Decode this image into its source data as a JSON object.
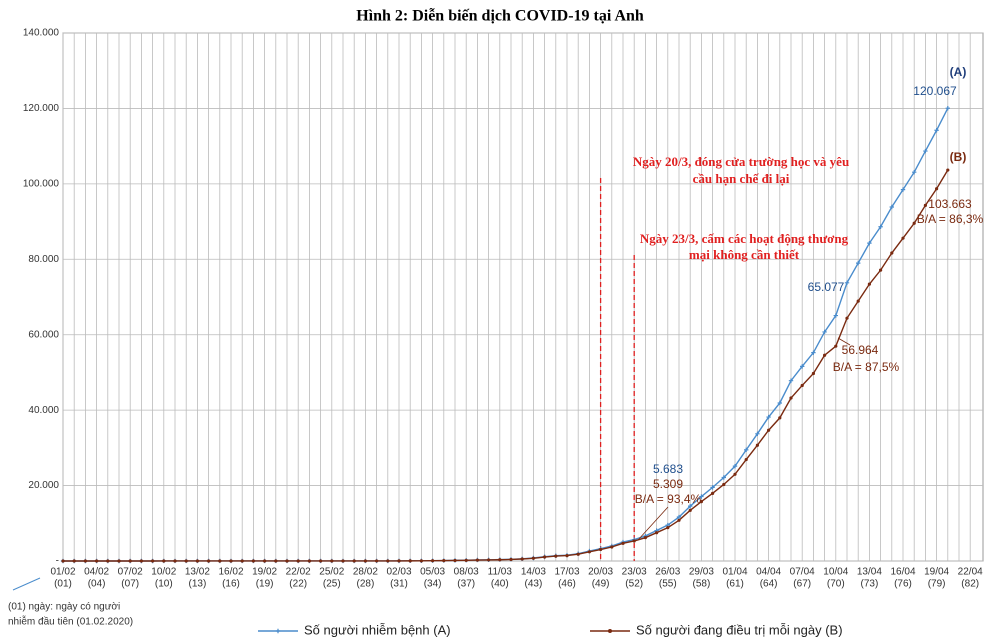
{
  "chart_data": {
    "type": "line",
    "title": "Hình 2: Diễn biến dịch COVID-19 tại Anh",
    "categories": [
      "01/02",
      null,
      null,
      "04/02",
      null,
      null,
      "07/02",
      null,
      null,
      "10/02",
      null,
      null,
      "13/02",
      null,
      null,
      "16/02",
      null,
      null,
      "19/02",
      null,
      null,
      "22/02",
      null,
      null,
      "25/02",
      null,
      null,
      "28/02",
      null,
      null,
      "02/03",
      null,
      null,
      "05/03",
      null,
      null,
      "08/03",
      null,
      null,
      "11/03",
      null,
      null,
      "14/03",
      null,
      null,
      "17/03",
      null,
      null,
      "20/03",
      null,
      null,
      "23/03",
      null,
      null,
      "26/03",
      null,
      null,
      "29/03",
      null,
      null,
      "01/04",
      null,
      null,
      "04/04",
      null,
      null,
      "07/04",
      null,
      null,
      "10/04",
      null,
      null,
      "13/04",
      null,
      null,
      "16/04",
      null,
      null,
      "19/04",
      null,
      null,
      "22/04"
    ],
    "category_sublabels": [
      "(01)",
      null,
      null,
      "(04)",
      null,
      null,
      "(07)",
      null,
      null,
      "(10)",
      null,
      null,
      "(13)",
      null,
      null,
      "(16)",
      null,
      null,
      "(19)",
      null,
      null,
      "(22)",
      null,
      null,
      "(25)",
      null,
      null,
      "(28)",
      null,
      null,
      "(31)",
      null,
      null,
      "(34)",
      null,
      null,
      "(37)",
      null,
      null,
      "(40)",
      null,
      null,
      "(43)",
      null,
      null,
      "(46)",
      null,
      null,
      "(49)",
      null,
      null,
      "(52)",
      null,
      null,
      "(55)",
      null,
      null,
      "(58)",
      null,
      null,
      "(61)",
      null,
      null,
      "(64)",
      null,
      null,
      "(67)",
      null,
      null,
      "(70)",
      null,
      null,
      "(73)",
      null,
      null,
      "(76)",
      null,
      null,
      "(79)",
      null,
      null,
      "(82)"
    ],
    "series": [
      {
        "name": "Số người nhiễm bệnh (A)",
        "color": "#4a8ccc",
        "values": [
          2,
          2,
          2,
          2,
          2,
          2,
          2,
          2,
          2,
          8,
          8,
          8,
          9,
          9,
          9,
          9,
          9,
          9,
          9,
          9,
          9,
          9,
          9,
          13,
          13,
          13,
          13,
          15,
          20,
          23,
          36,
          40,
          51,
          85,
          115,
          163,
          206,
          273,
          321,
          373,
          456,
          590,
          798,
          1140,
          1391,
          1543,
          1950,
          2626,
          3269,
          3983,
          5018,
          5683,
          6650,
          8077,
          9529,
          11658,
          14543,
          17089,
          19522,
          22141,
          25150,
          29474,
          33718,
          38168,
          41903,
          47806,
          51608,
          55242,
          60733,
          65077,
          73758,
          78991,
          84279,
          88621,
          93873,
          98476,
          103093,
          108692,
          114217,
          120067,
          null,
          null
        ]
      },
      {
        "name": "Số người đang điều trị mỗi ngày (B)",
        "color": "#7a2a10",
        "values": [
          2,
          2,
          2,
          2,
          2,
          2,
          2,
          2,
          2,
          8,
          8,
          8,
          9,
          9,
          9,
          9,
          9,
          9,
          9,
          9,
          9,
          9,
          9,
          13,
          13,
          13,
          13,
          15,
          20,
          21,
          28,
          32,
          43,
          77,
          97,
          144,
          180,
          243,
          287,
          329,
          407,
          531,
          725,
          1055,
          1296,
          1431,
          1806,
          2442,
          3046,
          3709,
          4689,
          5309,
          6189,
          7505,
          8843,
          10794,
          13439,
          15750,
          17940,
          20291,
          22987,
          26899,
          30699,
          34671,
          37942,
          43216,
          46546,
          49718,
          54562,
          56964,
          64385,
          68910,
          73410,
          77120,
          81658,
          85600,
          89555,
          94300,
          98700,
          103663,
          null,
          null
        ]
      }
    ],
    "ylim": [
      0,
      140000
    ],
    "yticks": [
      {
        "value": 0,
        "label": "-"
      },
      {
        "value": 20000,
        "label": "20.000"
      },
      {
        "value": 40000,
        "label": "40.000"
      },
      {
        "value": 60000,
        "label": "60.000"
      },
      {
        "value": 80000,
        "label": "80.000"
      },
      {
        "value": 100000,
        "label": "100.000"
      },
      {
        "value": 120000,
        "label": "120.000"
      },
      {
        "value": 140000,
        "label": "140.000"
      }
    ],
    "grid": true,
    "annotations": [
      {
        "text": "(A)",
        "color": "#1f3d7a"
      },
      {
        "text": "120.067",
        "color": "#1f4e8c"
      },
      {
        "text": "(B)",
        "color": "#7a2a10"
      },
      {
        "text": "103.663",
        "color": "#7a2a10"
      },
      {
        "text": "B/A = 86,3%",
        "color": "#7a2a10"
      },
      {
        "text": "65.077",
        "color": "#1f4e8c"
      },
      {
        "text": "56.964",
        "color": "#7a2a10"
      },
      {
        "text": "B/A = 87,5%",
        "color": "#7a2a10"
      },
      {
        "text": "5.683",
        "color": "#1f4e8c"
      },
      {
        "text": "5.309",
        "color": "#7a2a10"
      },
      {
        "text": "B/A = 93,4%",
        "color": "#7a2a10"
      }
    ],
    "events": [
      {
        "lines": [
          "Ngày 20/3, đóng cửa trường học và yêu",
          "cầu hạn chế đi lại"
        ],
        "color": "#e02020"
      },
      {
        "lines": [
          "Ngày 23/3, cấm các hoạt động thương",
          "mại không cần thiết"
        ],
        "color": "#e02020"
      }
    ],
    "footnote": [
      "(01) ngày: ngày có người",
      "nhiễm đầu tiên (01.02.2020)"
    ]
  }
}
